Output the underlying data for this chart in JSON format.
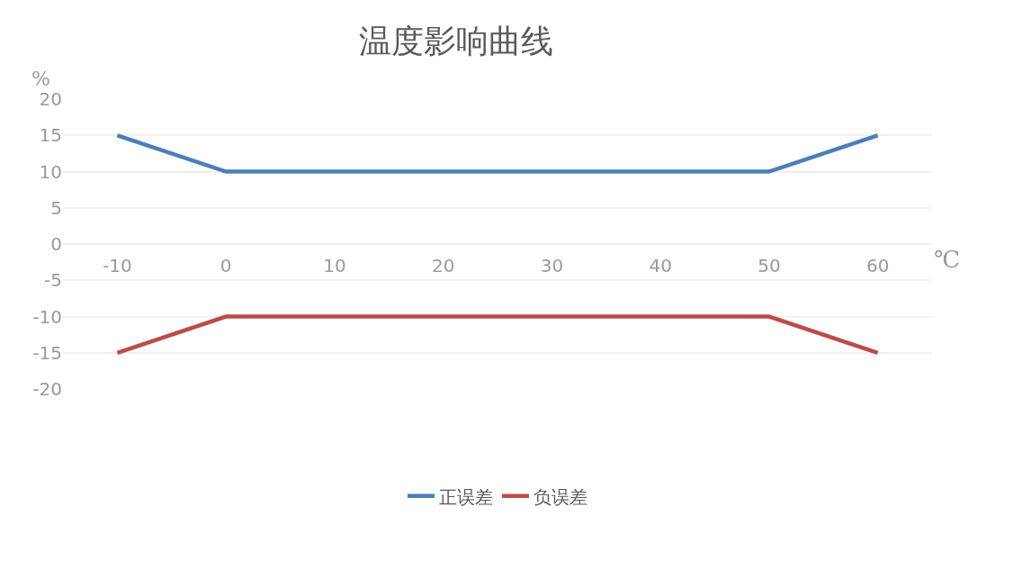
{
  "chart_data": {
    "type": "line",
    "title": "温度影响曲线",
    "xlabel": "℃",
    "ylabel": "%",
    "categories": [
      "-10",
      "0",
      "10",
      "20",
      "30",
      "40",
      "50",
      "60"
    ],
    "series": [
      {
        "name": "正误差",
        "color": "#4a7ebb",
        "values": [
          15,
          10,
          10,
          10,
          10,
          10,
          10,
          15
        ]
      },
      {
        "name": "负误差",
        "color": "#be4b48",
        "values": [
          -15,
          -10,
          -10,
          -10,
          -10,
          -10,
          -10,
          -15
        ]
      }
    ],
    "ylim": [
      -20,
      20
    ],
    "yticks": [
      20,
      15,
      10,
      5,
      0,
      -5,
      -10,
      -15,
      -20
    ],
    "grid": "y",
    "legend": "bottom",
    "marker": "none",
    "line_style": "solid"
  }
}
